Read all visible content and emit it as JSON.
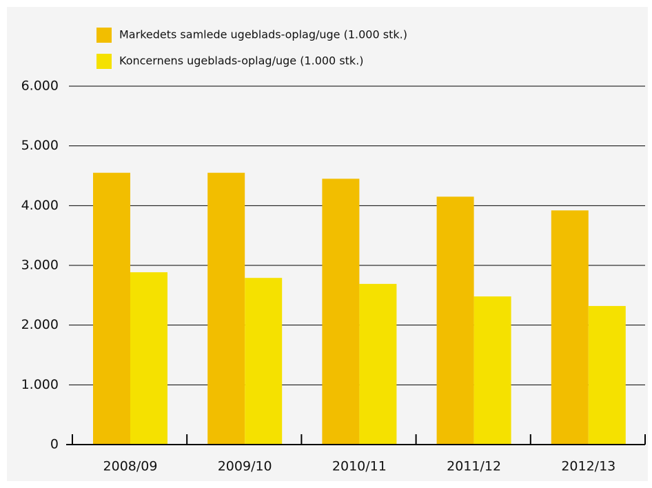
{
  "chart_data": {
    "type": "bar",
    "categories": [
      "2008/09",
      "2009/10",
      "2010/11",
      "2011/12",
      "2012/13"
    ],
    "series": [
      {
        "name": "Markedets samlede ugeblads-oplag/uge (1.000 stk.)",
        "color": "#f2be00",
        "values": [
          4550,
          4550,
          4450,
          4150,
          3920
        ]
      },
      {
        "name": "Koncernens ugeblads-oplag/uge (1.000 stk.)",
        "color": "#f5e100",
        "values": [
          2885,
          2790,
          2690,
          2480,
          2320
        ]
      }
    ],
    "ylim": [
      0,
      6000
    ],
    "yticks": [
      0,
      {
        "value": 1000,
        "label": "1.000"
      },
      {
        "value": 2000,
        "label": "2.000"
      },
      {
        "value": 3000,
        "label": "3.000"
      },
      {
        "value": 4000,
        "label": "4.000"
      },
      {
        "value": 5000,
        "label": "5.000"
      },
      {
        "value": 6000,
        "label": "6.000"
      }
    ],
    "grid": true,
    "legend": "top"
  }
}
